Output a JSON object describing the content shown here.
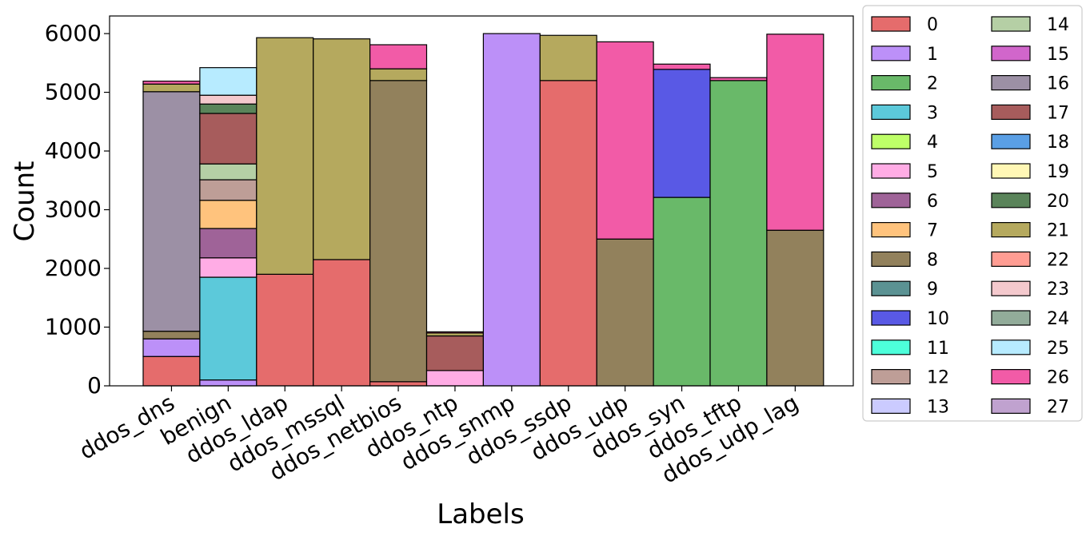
{
  "chart_data": {
    "type": "bar",
    "stacked": true,
    "xlabel": "Labels",
    "ylabel": "Count",
    "ylim": [
      0,
      6300
    ],
    "yticks": [
      0,
      1000,
      2000,
      3000,
      4000,
      5000,
      6000
    ],
    "grid": false,
    "legend": {
      "placement": "outside-right",
      "columns": 2
    },
    "categories": [
      "ddos_dns",
      "benign",
      "ddos_ldap",
      "ddos_mssql",
      "ddos_netbios",
      "ddos_ntp",
      "ddos_snmp",
      "ddos_ssdp",
      "ddos_udp",
      "ddos_syn",
      "ddos_tftp",
      "ddos_udp_lag"
    ],
    "series": [
      {
        "name": "0",
        "color": "#e05252",
        "values": [
          500,
          0,
          1900,
          2150,
          70,
          0,
          0,
          5200,
          0,
          0,
          0,
          0
        ]
      },
      {
        "name": "1",
        "color": "#b07cf7",
        "values": [
          300,
          100,
          0,
          0,
          0,
          0,
          6000,
          0,
          0,
          0,
          0,
          0
        ]
      },
      {
        "name": "2",
        "color": "#4fad4f",
        "values": [
          0,
          0,
          0,
          0,
          0,
          0,
          0,
          0,
          0,
          3210,
          5200,
          0
        ]
      },
      {
        "name": "3",
        "color": "#3fbfd4",
        "values": [
          0,
          1750,
          0,
          0,
          0,
          0,
          0,
          0,
          0,
          0,
          0,
          0
        ]
      },
      {
        "name": "4",
        "color": "#b3ff4d",
        "values": [
          0,
          0,
          0,
          0,
          0,
          0,
          0,
          0,
          0,
          0,
          0,
          0
        ]
      },
      {
        "name": "5",
        "color": "#ff9ee0",
        "values": [
          0,
          330,
          0,
          0,
          0,
          260,
          0,
          0,
          0,
          0,
          0,
          0
        ]
      },
      {
        "name": "6",
        "color": "#8e4886",
        "values": [
          0,
          500,
          0,
          0,
          0,
          0,
          0,
          0,
          0,
          0,
          0,
          0
        ]
      },
      {
        "name": "7",
        "color": "#ffb966",
        "values": [
          0,
          480,
          0,
          0,
          0,
          0,
          0,
          0,
          0,
          0,
          0,
          0
        ]
      },
      {
        "name": "8",
        "color": "#7f6b40",
        "values": [
          130,
          0,
          0,
          0,
          5130,
          0,
          0,
          0,
          2500,
          0,
          0,
          2650
        ]
      },
      {
        "name": "9",
        "color": "#3e7f80",
        "values": [
          0,
          0,
          0,
          0,
          0,
          0,
          0,
          0,
          0,
          0,
          0,
          0
        ]
      },
      {
        "name": "10",
        "color": "#3c3ce0",
        "values": [
          0,
          0,
          0,
          0,
          0,
          0,
          0,
          0,
          0,
          2180,
          0,
          0
        ]
      },
      {
        "name": "11",
        "color": "#2effd4",
        "values": [
          0,
          0,
          0,
          0,
          0,
          0,
          0,
          0,
          0,
          0,
          0,
          0
        ]
      },
      {
        "name": "12",
        "color": "#b38d85",
        "values": [
          0,
          350,
          0,
          0,
          0,
          0,
          0,
          0,
          0,
          0,
          0,
          0
        ]
      },
      {
        "name": "13",
        "color": "#c2c2ff",
        "values": [
          0,
          0,
          0,
          0,
          0,
          0,
          0,
          0,
          0,
          0,
          0,
          0
        ]
      },
      {
        "name": "14",
        "color": "#a8c795",
        "values": [
          0,
          270,
          0,
          0,
          0,
          0,
          0,
          0,
          0,
          0,
          0,
          0
        ]
      },
      {
        "name": "15",
        "color": "#c94bc2",
        "values": [
          0,
          0,
          0,
          0,
          0,
          0,
          0,
          0,
          0,
          0,
          0,
          0
        ]
      },
      {
        "name": "16",
        "color": "#8b7c95",
        "values": [
          4080,
          0,
          0,
          0,
          0,
          0,
          0,
          0,
          0,
          0,
          0,
          0
        ]
      },
      {
        "name": "17",
        "color": "#984040",
        "values": [
          0,
          860,
          0,
          0,
          0,
          590,
          0,
          0,
          0,
          0,
          0,
          0
        ]
      },
      {
        "name": "18",
        "color": "#3d8ee0",
        "values": [
          0,
          0,
          0,
          0,
          0,
          0,
          0,
          0,
          0,
          0,
          0,
          0
        ]
      },
      {
        "name": "19",
        "color": "#fff6a8",
        "values": [
          0,
          0,
          0,
          0,
          0,
          0,
          0,
          0,
          0,
          0,
          0,
          0
        ]
      },
      {
        "name": "20",
        "color": "#3d6e3d",
        "values": [
          0,
          160,
          0,
          0,
          0,
          0,
          0,
          0,
          0,
          0,
          0,
          0
        ]
      },
      {
        "name": "21",
        "color": "#a89a42",
        "values": [
          130,
          0,
          4030,
          3760,
          200,
          50,
          0,
          770,
          0,
          0,
          0,
          0
        ]
      },
      {
        "name": "22",
        "color": "#ff8c80",
        "values": [
          0,
          0,
          0,
          0,
          0,
          0,
          0,
          0,
          0,
          0,
          0,
          0
        ]
      },
      {
        "name": "23",
        "color": "#f2c0c4",
        "values": [
          0,
          150,
          0,
          0,
          0,
          0,
          0,
          0,
          0,
          0,
          0,
          0
        ]
      },
      {
        "name": "24",
        "color": "#7f9e88",
        "values": [
          0,
          0,
          0,
          0,
          0,
          0,
          0,
          0,
          0,
          0,
          0,
          0
        ]
      },
      {
        "name": "25",
        "color": "#aae8ff",
        "values": [
          0,
          470,
          0,
          0,
          0,
          0,
          0,
          0,
          0,
          0,
          0,
          0
        ]
      },
      {
        "name": "26",
        "color": "#f03e98",
        "values": [
          50,
          0,
          0,
          0,
          410,
          20,
          0,
          0,
          3360,
          90,
          50,
          3340
        ]
      },
      {
        "name": "27",
        "color": "#b592c7",
        "values": [
          0,
          0,
          0,
          0,
          0,
          0,
          0,
          0,
          0,
          0,
          0,
          0
        ]
      }
    ]
  }
}
